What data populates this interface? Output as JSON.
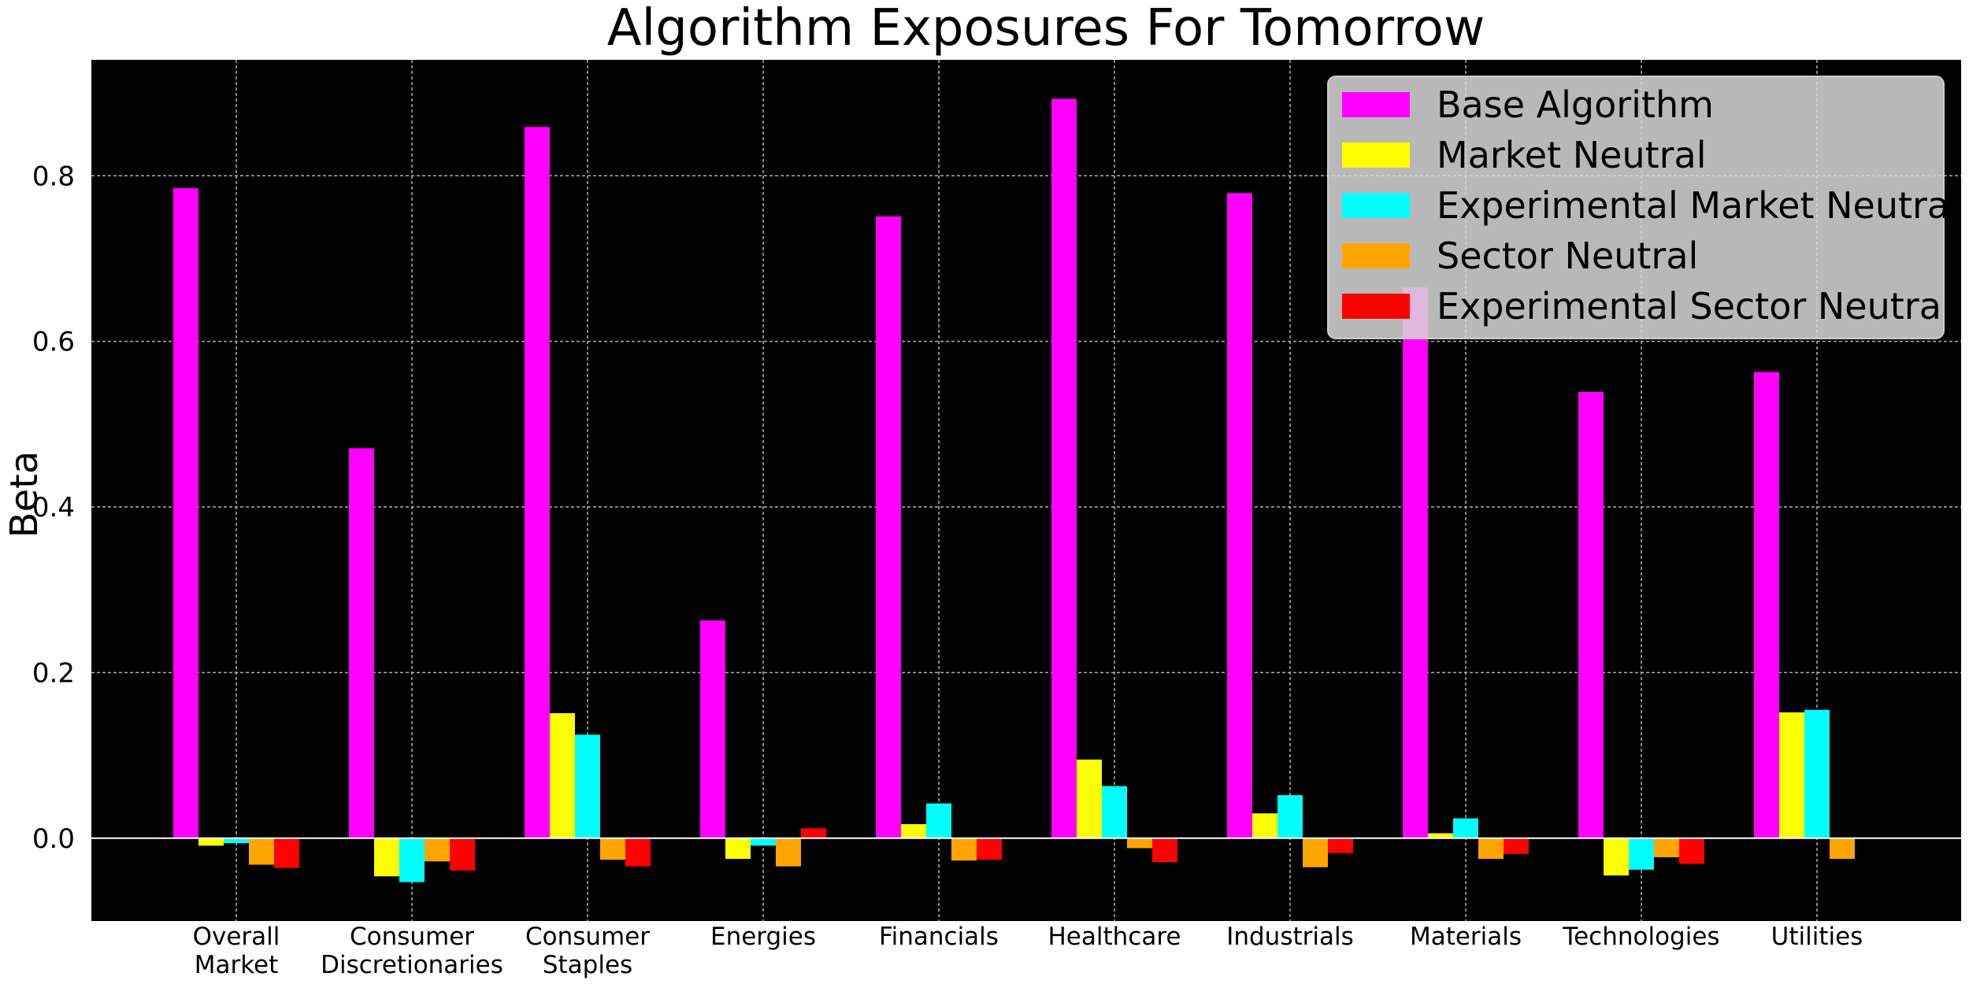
{
  "chart_data": {
    "type": "bar",
    "title": "Algorithm Exposures For Tomorrow",
    "xlabel": "",
    "ylabel": "Beta",
    "ylim": [
      -0.1,
      0.94
    ],
    "yticks": [
      "0.0",
      "0.2",
      "0.4",
      "0.6",
      "0.8"
    ],
    "ytick_values": [
      0.0,
      0.2,
      0.4,
      0.6,
      0.8
    ],
    "grid": true,
    "legend_position": "top-right",
    "categories": [
      "Overall Market",
      "Consumer Discretionaries",
      "Consumer Staples",
      "Energies",
      "Financials",
      "Healthcare",
      "Industrials",
      "Materials",
      "Technologies",
      "Utilities"
    ],
    "category_lines": [
      [
        "Overall",
        "Market"
      ],
      [
        "Consumer",
        "Discretionaries"
      ],
      [
        "Consumer",
        "Staples"
      ],
      [
        "Energies"
      ],
      [
        "Financials"
      ],
      [
        "Healthcare"
      ],
      [
        "Industrials"
      ],
      [
        "Materials"
      ],
      [
        "Technologies"
      ],
      [
        "Utilities"
      ]
    ],
    "series": [
      {
        "name": "Base Algorithm",
        "color": "#ff00ff",
        "values": [
          0.785,
          0.471,
          0.859,
          0.263,
          0.751,
          0.893,
          0.779,
          0.665,
          0.539,
          0.563
        ]
      },
      {
        "name": "Market Neutral",
        "color": "#ffff00",
        "values": [
          -0.009,
          -0.046,
          0.151,
          -0.025,
          0.017,
          0.095,
          0.03,
          0.006,
          -0.045,
          0.152
        ]
      },
      {
        "name": "Experimental Market Neutral",
        "color": "#00ffff",
        "values": [
          -0.006,
          -0.053,
          0.125,
          -0.009,
          0.042,
          0.063,
          0.052,
          0.024,
          -0.038,
          0.155
        ]
      },
      {
        "name": "Sector Neutral",
        "color": "#ffa500",
        "values": [
          -0.032,
          -0.028,
          -0.026,
          -0.034,
          -0.027,
          -0.012,
          -0.035,
          -0.025,
          -0.023,
          -0.025
        ]
      },
      {
        "name": "Experimental Sector Neutral",
        "color": "#ff0000",
        "values": [
          -0.036,
          -0.039,
          -0.034,
          0.012,
          -0.026,
          -0.029,
          -0.018,
          -0.019,
          -0.031,
          0.0
        ]
      }
    ]
  }
}
